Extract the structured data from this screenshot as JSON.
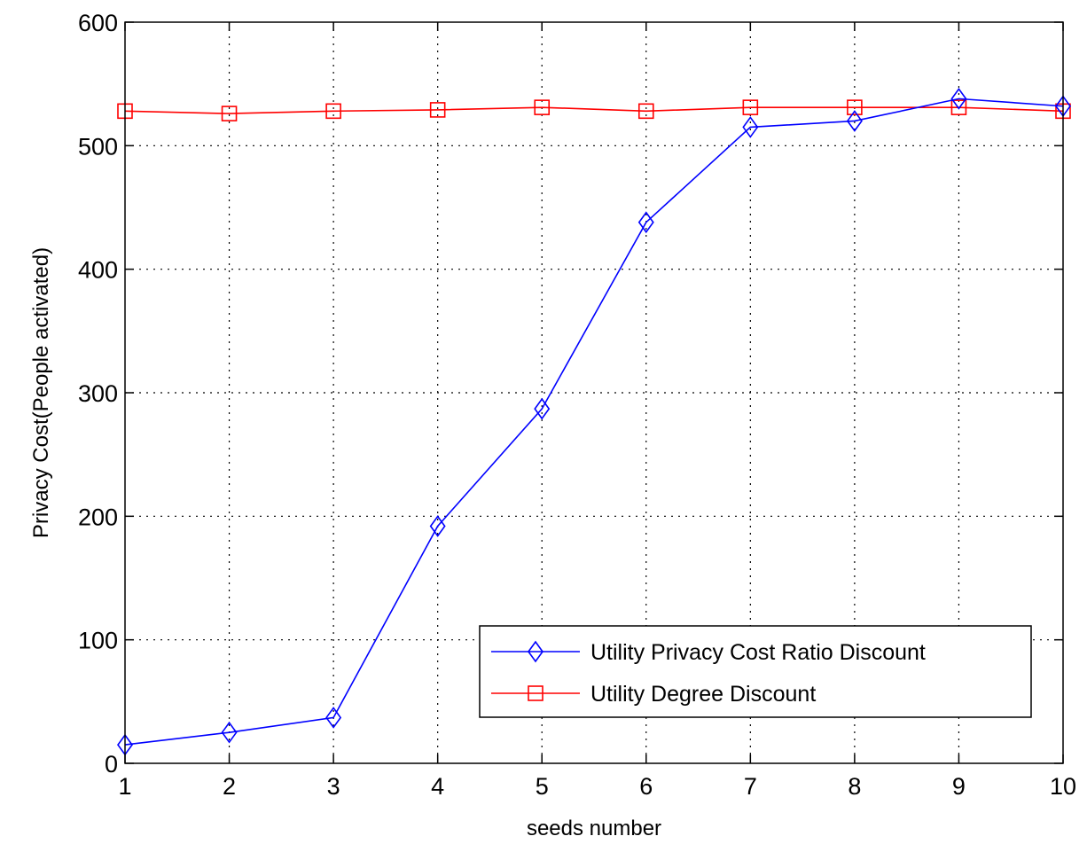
{
  "chart_data": {
    "type": "line",
    "xlabel": "seeds number",
    "ylabel": "Privacy Cost(People activated)",
    "xlim": [
      1,
      10
    ],
    "ylim": [
      0,
      600
    ],
    "xticks": [
      1,
      2,
      3,
      4,
      5,
      6,
      7,
      8,
      9,
      10
    ],
    "yticks": [
      0,
      100,
      200,
      300,
      400,
      500,
      600
    ],
    "grid": true,
    "legend_position": "bottom-right",
    "x": [
      1,
      2,
      3,
      4,
      5,
      6,
      7,
      8,
      9,
      10
    ],
    "series": [
      {
        "name": "Utility Privacy Cost Ratio Discount",
        "color": "#0000ff",
        "marker": "diamond",
        "values": [
          15,
          25,
          37,
          192,
          287,
          438,
          515,
          520,
          538,
          532
        ]
      },
      {
        "name": "Utility Degree Discount",
        "color": "#ff0000",
        "marker": "square",
        "values": [
          528,
          526,
          528,
          529,
          531,
          528,
          531,
          531,
          531,
          528
        ]
      }
    ]
  }
}
